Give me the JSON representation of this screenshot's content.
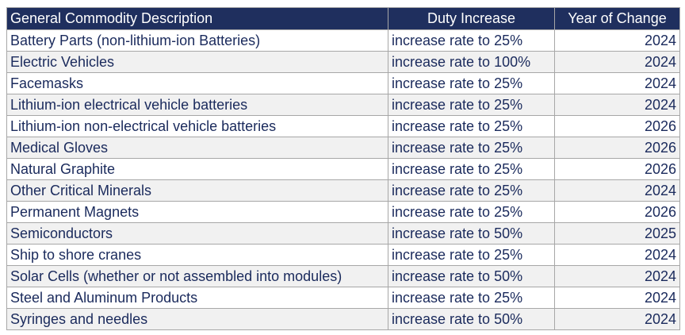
{
  "table": {
    "headers": {
      "description": "General Commodity Description",
      "duty": "Duty Increase",
      "year": "Year of Change"
    },
    "rows": [
      {
        "description": "Battery Parts (non-lithium-ion Batteries)",
        "duty": "increase rate to 25%",
        "year": "2024"
      },
      {
        "description": "Electric Vehicles",
        "duty": "increase rate to 100%",
        "year": "2024"
      },
      {
        "description": "Facemasks",
        "duty": "increase rate to 25%",
        "year": "2024"
      },
      {
        "description": "Lithium-ion electrical vehicle batteries",
        "duty": "increase rate to 25%",
        "year": "2024"
      },
      {
        "description": "Lithium-ion non-electrical vehicle batteries",
        "duty": "increase rate to 25%",
        "year": "2026"
      },
      {
        "description": "Medical Gloves",
        "duty": "increase rate to 25%",
        "year": "2026"
      },
      {
        "description": "Natural Graphite",
        "duty": "increase rate to 25%",
        "year": "2026"
      },
      {
        "description": "Other Critical Minerals",
        "duty": "increase rate to 25%",
        "year": "2024"
      },
      {
        "description": "Permanent Magnets",
        "duty": "increase rate to 25%",
        "year": "2026"
      },
      {
        "description": "Semiconductors",
        "duty": "increase rate to 50%",
        "year": "2025"
      },
      {
        "description": "Ship to shore cranes",
        "duty": "increase rate to 25%",
        "year": "2024"
      },
      {
        "description": "Solar Cells (whether or not assembled into modules)",
        "duty": "increase rate to 50%",
        "year": "2024"
      },
      {
        "description": "Steel and Aluminum Products",
        "duty": "increase rate to 25%",
        "year": "2024"
      },
      {
        "description": "Syringes and needles",
        "duty": "increase rate to 50%",
        "year": "2024"
      }
    ]
  }
}
